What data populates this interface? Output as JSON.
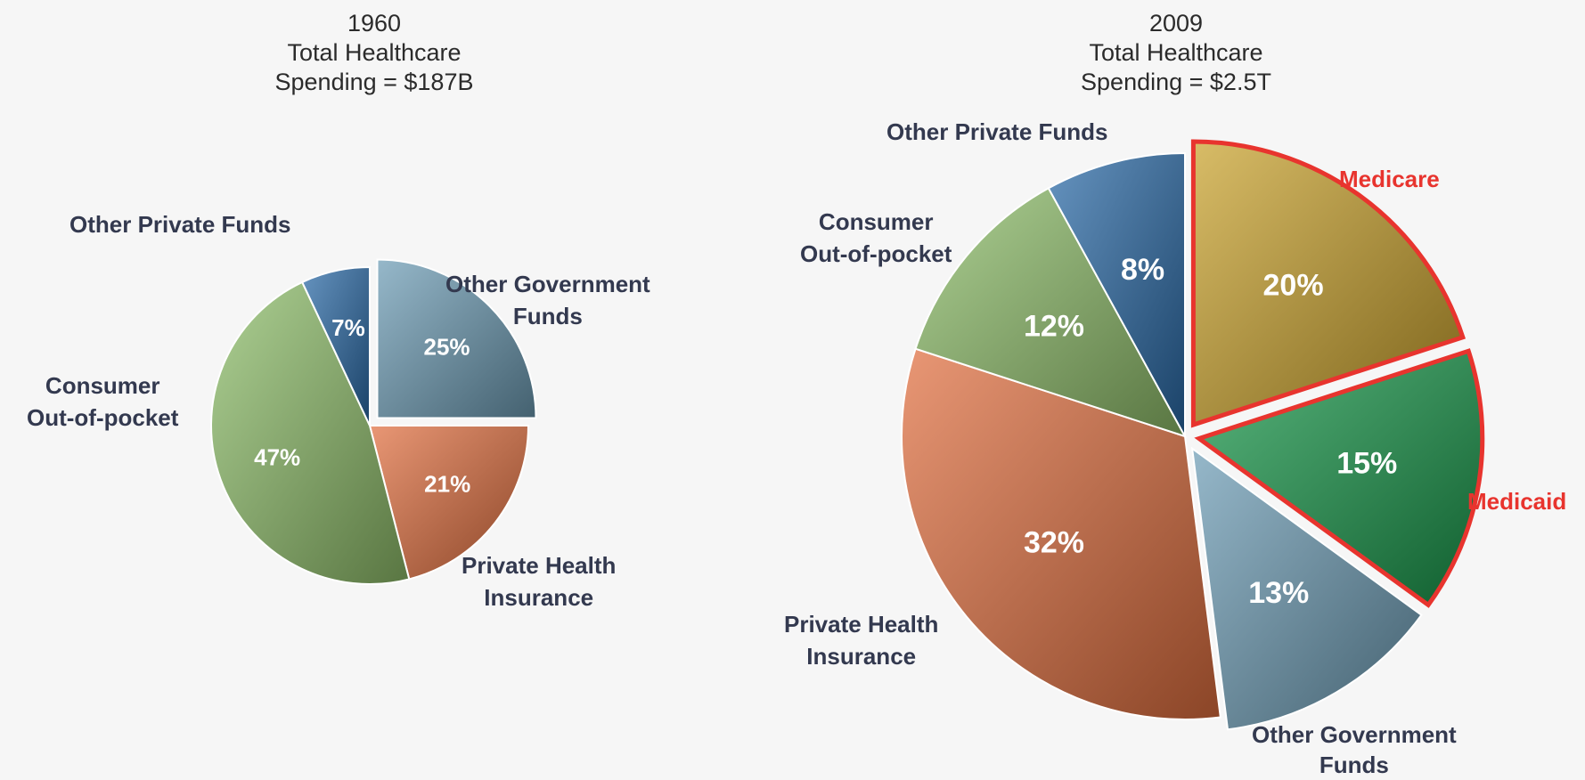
{
  "chart_data": [
    {
      "type": "pie",
      "title_lines": [
        "1960",
        "Total Healthcare",
        "Spending = $187B"
      ],
      "start_category": "Other Government Funds",
      "slices": [
        {
          "category": "Other Government Funds",
          "label_lines": [
            "Other Government",
            "Funds"
          ],
          "value": 25,
          "value_label": "25%",
          "color": "#6d9db5",
          "exploded": true
        },
        {
          "category": "Private Health Insurance",
          "label_lines": [
            "Private Health",
            "Insurance"
          ],
          "value": 21,
          "value_label": "21%",
          "color": "#e06f3f",
          "exploded": false
        },
        {
          "category": "Consumer Out-of-pocket",
          "label_lines": [
            "Consumer",
            "Out-of-pocket"
          ],
          "value": 47,
          "value_label": "47%",
          "color": "#8fbf6a",
          "exploded": false
        },
        {
          "category": "Other Private Funds",
          "label_lines": [
            "Other Private Funds"
          ],
          "value": 7,
          "value_label": "7%",
          "color": "#2a6aa8",
          "exploded": false
        }
      ]
    },
    {
      "type": "pie",
      "title_lines": [
        "2009",
        "Total Healthcare",
        "Spending = $2.5T"
      ],
      "start_category": "Medicare",
      "slices": [
        {
          "category": "Medicare",
          "label_lines": [
            "Medicare"
          ],
          "value": 20,
          "value_label": "20%",
          "color": "#c9a22c",
          "exploded": true,
          "highlight": "#e8342e"
        },
        {
          "category": "Medicaid",
          "label_lines": [
            "Medicaid"
          ],
          "value": 15,
          "value_label": "15%",
          "color": "#1a9a4c",
          "exploded": true,
          "highlight": "#e8342e"
        },
        {
          "category": "Other Government Funds",
          "label_lines": [
            "Other Government",
            "Funds"
          ],
          "value": 13,
          "value_label": "13%",
          "color": "#6d9db5",
          "exploded": true
        },
        {
          "category": "Private Health Insurance",
          "label_lines": [
            "Private Health",
            "Insurance"
          ],
          "value": 32,
          "value_label": "32%",
          "color": "#e06f3f",
          "exploded": false
        },
        {
          "category": "Consumer Out-of-pocket",
          "label_lines": [
            "Consumer",
            "Out-of-pocket"
          ],
          "value": 12,
          "value_label": "12%",
          "color": "#8fbf6a",
          "exploded": false
        },
        {
          "category": "Other Private Funds",
          "label_lines": [
            "Other Private Funds"
          ],
          "value": 8,
          "value_label": "8%",
          "color": "#2a6aa8",
          "exploded": false
        }
      ]
    }
  ]
}
